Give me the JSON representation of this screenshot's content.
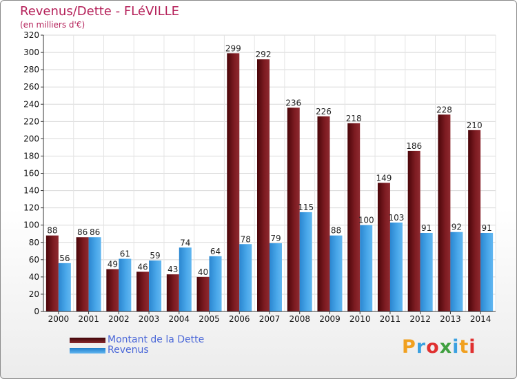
{
  "title": "Revenus/Dette - FLéVILLE",
  "subtitle": "(en milliers d'€)",
  "legend": [
    {
      "label": "Montant de la Dette",
      "color": "#6b0f14"
    },
    {
      "label": "Revenus",
      "color": "#3d9be0"
    }
  ],
  "logo": {
    "text": "Proxiti",
    "letters": [
      "P",
      "r",
      "o",
      "x",
      "i",
      "t",
      "i"
    ],
    "colors": [
      "#f0a020",
      "#3aa0e0",
      "#e03030",
      "#40a040",
      "#3aa0e0",
      "#f0a020",
      "#e03030"
    ]
  },
  "chart_data": {
    "type": "bar",
    "title": "Revenus/Dette - FLéVILLE",
    "ylabel": "(en milliers d'€)",
    "xlabel": "",
    "ylim": [
      0,
      320
    ],
    "yticks": [
      0,
      20,
      40,
      60,
      80,
      100,
      120,
      140,
      160,
      180,
      200,
      220,
      240,
      260,
      280,
      300,
      320
    ],
    "categories": [
      "2000",
      "2001",
      "2002",
      "2003",
      "2004",
      "2005",
      "2006",
      "2007",
      "2008",
      "2009",
      "2010",
      "2011",
      "2012",
      "2013",
      "2014"
    ],
    "series": [
      {
        "name": "Montant de la Dette",
        "color": "#6b0f14",
        "values": [
          88,
          86,
          49,
          46,
          43,
          40,
          299,
          292,
          236,
          226,
          218,
          149,
          186,
          228,
          210
        ]
      },
      {
        "name": "Revenus",
        "color": "#3d9be0",
        "values": [
          56,
          86,
          61,
          59,
          74,
          64,
          78,
          79,
          115,
          88,
          100,
          103,
          91,
          92,
          91
        ]
      }
    ],
    "grid": true
  }
}
